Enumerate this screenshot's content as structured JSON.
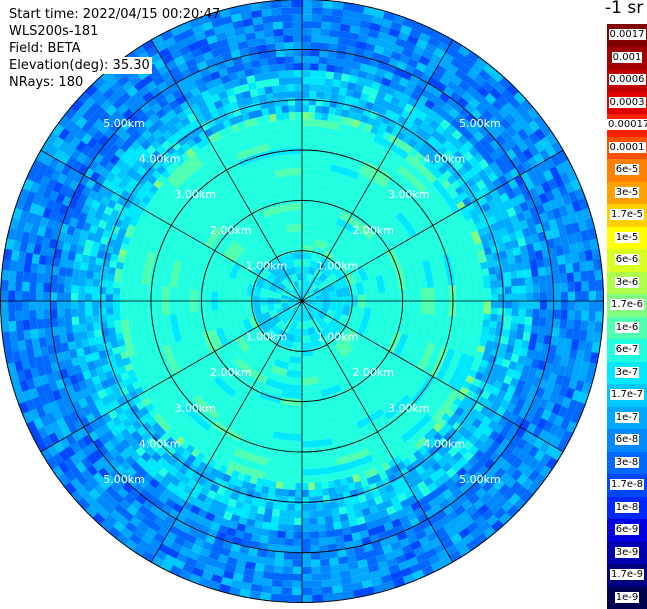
{
  "info": {
    "start_time": "Start time: 2022/04/15 00:20:47",
    "instrument": "WLS200s-181",
    "field": "Field: BETA",
    "elevation": "Elevation(deg): 35.30",
    "nrays": "NRays: 180"
  },
  "colorbar": {
    "unit_label": "-1 sr",
    "levels": [
      {
        "label": "0.0017",
        "color": "#800000"
      },
      {
        "label": "0.001",
        "color": "#a00000"
      },
      {
        "label": "0.0006",
        "color": "#c00000"
      },
      {
        "label": "0.0003",
        "color": "#e00000"
      },
      {
        "label": "0.00017",
        "color": "#ff2000"
      },
      {
        "label": "0.0001",
        "color": "#ff5000"
      },
      {
        "label": "6e-5",
        "color": "#ff8000"
      },
      {
        "label": "3e-5",
        "color": "#ffa000"
      },
      {
        "label": "1.7e-5",
        "color": "#ffd000"
      },
      {
        "label": "1e-5",
        "color": "#ffff00"
      },
      {
        "label": "6e-6",
        "color": "#d8ff20"
      },
      {
        "label": "3e-6",
        "color": "#b0ff48"
      },
      {
        "label": "1.7e-6",
        "color": "#80ff80"
      },
      {
        "label": "1e-6",
        "color": "#50ffb0"
      },
      {
        "label": "6e-7",
        "color": "#20ffe0"
      },
      {
        "label": "3e-7",
        "color": "#00e8ff"
      },
      {
        "label": "1.7e-7",
        "color": "#00c8ff"
      },
      {
        "label": "1e-7",
        "color": "#00a8ff"
      },
      {
        "label": "6e-8",
        "color": "#0088ff"
      },
      {
        "label": "3e-8",
        "color": "#0068ff"
      },
      {
        "label": "1.7e-8",
        "color": "#0048ff"
      },
      {
        "label": "1e-8",
        "color": "#0028ff"
      },
      {
        "label": "6e-9",
        "color": "#0000e0"
      },
      {
        "label": "3e-9",
        "color": "#0000b0"
      },
      {
        "label": "1.7e-9",
        "color": "#000080"
      },
      {
        "label": "1e-9",
        "color": "#000050"
      }
    ]
  },
  "chart_data": {
    "type": "heatmap",
    "projection": "polar PPI",
    "field": "BETA",
    "elevation_deg": 35.3,
    "n_rays": 180,
    "range_km_max": 6.0,
    "range_rings_km": [
      1.0,
      2.0,
      3.0,
      4.0,
      5.0
    ],
    "ring_labels": [
      "1.00km",
      "2.00km",
      "3.00km",
      "4.00km",
      "5.00km"
    ],
    "spokes_deg": [
      0,
      30,
      60,
      90,
      120,
      150,
      180,
      210,
      240,
      270,
      300,
      330
    ],
    "radial_profile": [
      {
        "range_km": [
          0.0,
          1.0
        ],
        "value": "3e-7"
      },
      {
        "range_km": [
          1.0,
          3.8
        ],
        "value": "6e-7"
      },
      {
        "range_km": [
          3.8,
          4.6
        ],
        "value": "1.7e-7"
      },
      {
        "range_km": [
          4.6,
          6.0
        ],
        "value": "6e-8"
      }
    ],
    "grid": true
  }
}
